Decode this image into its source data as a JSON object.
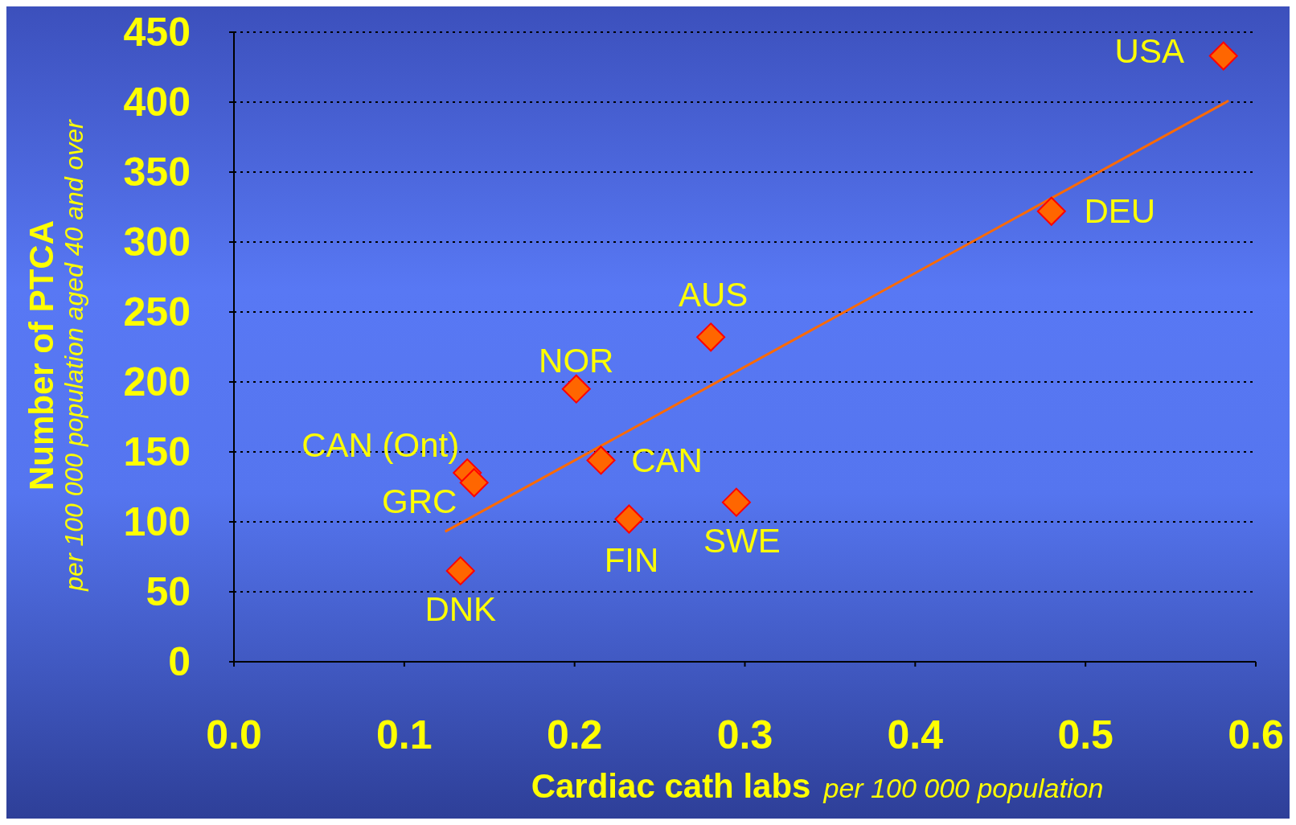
{
  "chart_data": {
    "type": "scatter",
    "xlabel": "Cardiac cath labs",
    "ylabel": "Number of PTCA",
    "series": [
      {
        "color": "#ff6600",
        "marker": "diamond",
        "x": [
          0.581,
          0.48,
          0.28,
          0.201,
          0.2155,
          0.137,
          0.141,
          0.232,
          0.295,
          0.133
        ],
        "values": [
          433,
          322,
          232,
          195,
          144,
          135,
          128,
          102,
          114,
          65
        ]
      },
      {
        "type": "line",
        "marker": "none",
        "color": "#ff6a00",
        "x": [
          0.124,
          0.584
        ],
        "values": [
          93,
          401
        ]
      }
    ],
    "grid": "y",
    "xlim": [
      0,
      0.6
    ],
    "xticks": [
      {
        "value": 0,
        "label": "0.0"
      },
      0.1,
      0.2,
      0.3,
      0.4,
      0.5,
      0.6
    ],
    "ylim": [
      0,
      450
    ],
    "yticks": [
      0,
      50,
      100,
      150,
      200,
      250,
      300,
      350,
      400,
      450
    ],
    "annotations": [
      "per 100 000 population aged 40 and over",
      "per 100 000 population",
      {
        "text": "USA",
        "x": 0.581,
        "y": 433
      },
      {
        "text": "DEU",
        "x": 0.48,
        "y": 322
      },
      {
        "text": "AUS",
        "x": 0.28,
        "y": 232
      },
      {
        "text": "NOR",
        "x": 0.201,
        "y": 195
      },
      {
        "text": "CAN",
        "x": 0.2155,
        "y": 144
      },
      {
        "text": "CAN (Ont)",
        "x": 0.137,
        "y": 135
      },
      {
        "text": "GRC",
        "x": 0.141,
        "y": 128
      },
      {
        "text": "FIN",
        "x": 0.232,
        "y": 102
      },
      {
        "text": "SWE",
        "x": 0.295,
        "y": 114
      },
      {
        "text": "DNK",
        "x": 0.133,
        "y": 65
      }
    ]
  }
}
